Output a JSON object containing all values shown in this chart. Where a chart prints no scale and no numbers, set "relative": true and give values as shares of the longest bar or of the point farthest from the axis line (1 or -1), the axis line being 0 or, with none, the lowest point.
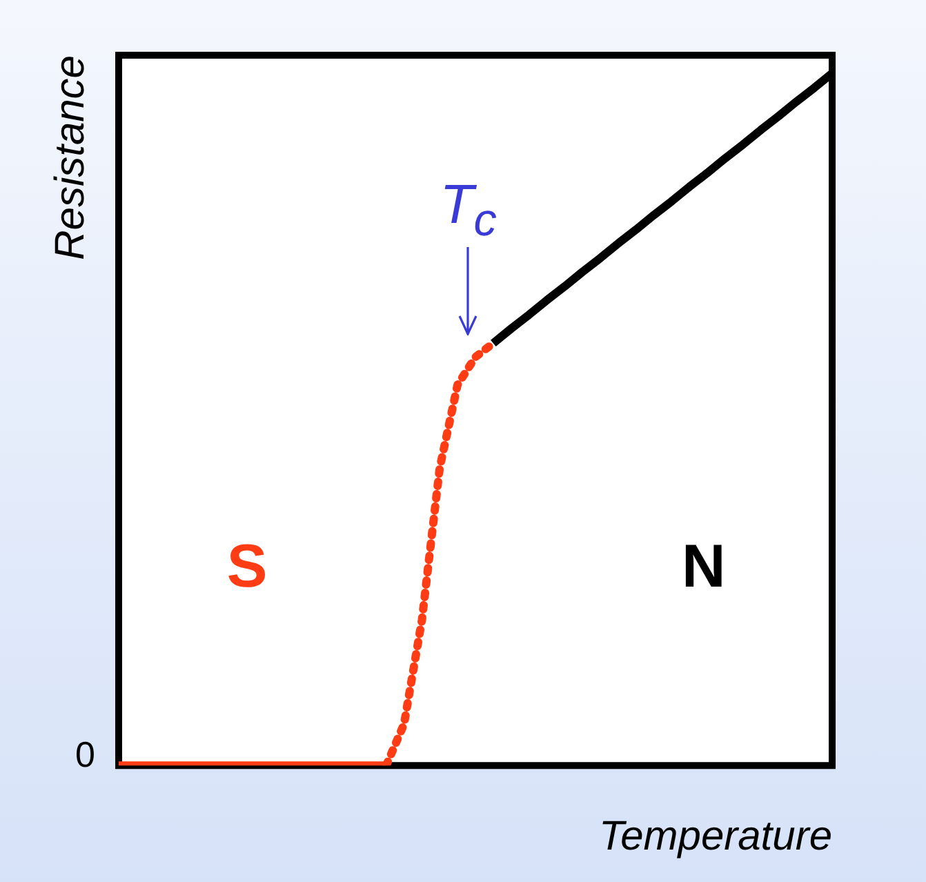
{
  "chart_data": {
    "type": "line",
    "relative": true,
    "xlabel": "Temperature",
    "ylabel": "Resistance",
    "categories": [
      null,
      null,
      null,
      null,
      null,
      null,
      null,
      null,
      null,
      null,
      null,
      null,
      null,
      null,
      null,
      null,
      null,
      null,
      null,
      null,
      null,
      null,
      null,
      null,
      null,
      null,
      null,
      null,
      null,
      null,
      null,
      null,
      null,
      null,
      null,
      null,
      null,
      null,
      null,
      null,
      null
    ],
    "series": [
      {
        "color": "#ff3c14",
        "line_style": "solid",
        "values": [
          0,
          0,
          0,
          0,
          0,
          0,
          0,
          0,
          0,
          0,
          0,
          0,
          0,
          0,
          0,
          0,
          null,
          null,
          null,
          null,
          null,
          null,
          null,
          null,
          null,
          null,
          null,
          null,
          null,
          null,
          null,
          null,
          null,
          null,
          null,
          null,
          null,
          null,
          null,
          null,
          null
        ]
      },
      {
        "color": "#ff3c14",
        "line_style": "dotted",
        "values": [
          null,
          null,
          null,
          null,
          null,
          null,
          null,
          null,
          null,
          null,
          null,
          null,
          null,
          null,
          null,
          0,
          0.06,
          0.21,
          0.43,
          0.55,
          0.59,
          0.61,
          null,
          null,
          null,
          null,
          null,
          null,
          null,
          null,
          null,
          null,
          null,
          null,
          null,
          null,
          null,
          null,
          null,
          null,
          null
        ]
      },
      {
        "color": "#000000",
        "line_style": "solid",
        "values": [
          null,
          null,
          null,
          null,
          null,
          null,
          null,
          null,
          null,
          null,
          null,
          null,
          null,
          null,
          null,
          null,
          null,
          null,
          null,
          null,
          null,
          0.61,
          0.631,
          0.651,
          0.672,
          0.692,
          0.713,
          0.733,
          0.754,
          0.774,
          0.795,
          0.815,
          0.836,
          0.856,
          0.877,
          0.897,
          0.918,
          0.938,
          0.959,
          0.979,
          1
        ]
      }
    ],
    "annotations": [
      "T$_{c}$",
      "S",
      "N",
      "0"
    ],
    "marker": "none",
    "legend": false,
    "grid": false
  }
}
